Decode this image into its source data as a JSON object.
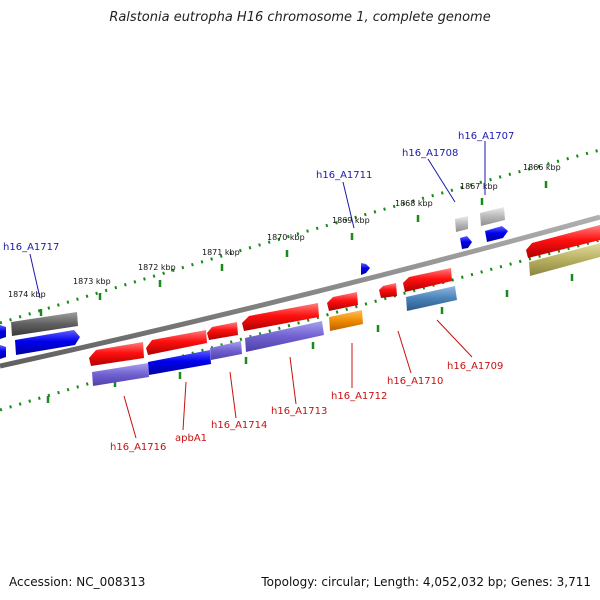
{
  "title": "Ralstonia eutropha H16 chromosome 1, complete genome",
  "footer": {
    "accession": "Accession: NC_008313",
    "topology": "Topology: circular; Length: 4,052,032 bp; Genes: 3,711"
  },
  "kbp_ticks": [
    "1874 kbp",
    "1873 kbp",
    "1872 kbp",
    "1871 kbp",
    "1870 kbp",
    "1869 kbp",
    "1868 kbp",
    "1867 kbp",
    "1866 kbp"
  ],
  "gene_labels_outer": [
    "h16_A1717",
    "h16_A1711",
    "h16_A1708",
    "h16_A1707"
  ],
  "gene_labels_inner": [
    "h16_A1716",
    "apbA1",
    "h16_A1714",
    "h16_A1713",
    "h16_A1712",
    "h16_A1710",
    "h16_A1709"
  ],
  "colors": {
    "forward_gene": "#1010e8",
    "reverse_gene": "#f01010",
    "outer_label": "#1a1aa8",
    "inner_label": "#c81010",
    "tick": "#1a8a1a",
    "backbone": "#808080"
  }
}
